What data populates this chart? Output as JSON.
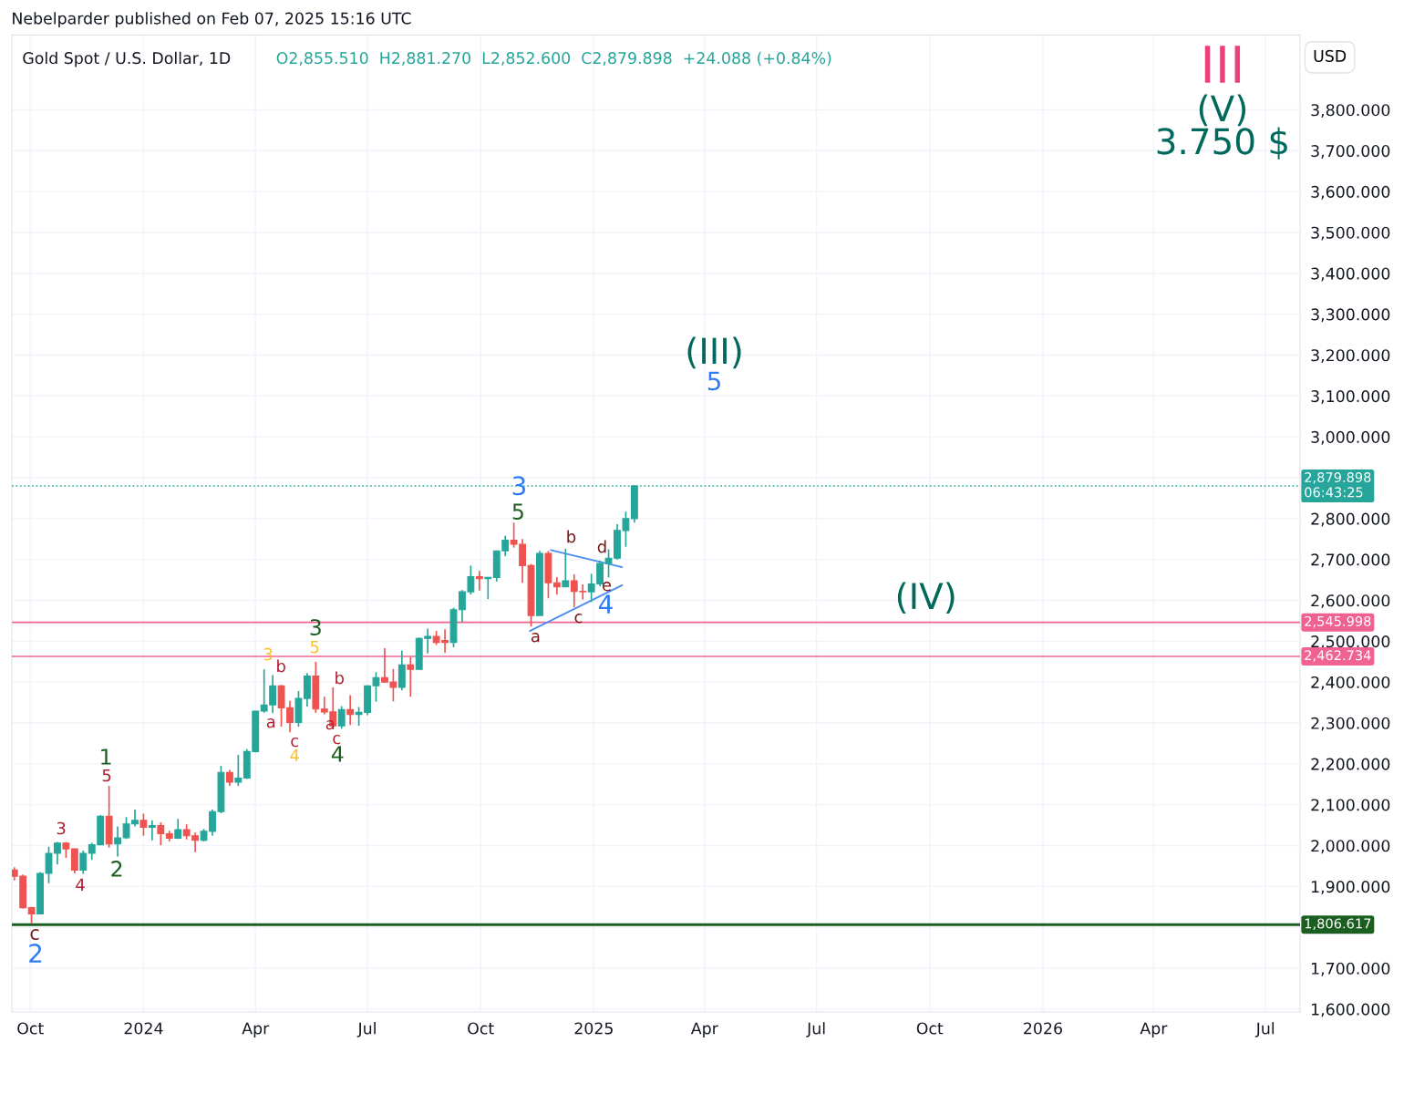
{
  "chart_data": {
    "type": "candlestick",
    "title": "Nebelparder published on Feb 07, 2025 15:16 UTC",
    "subtitle": "Gold Spot / U.S. Dollar, 1D",
    "ylabel": "USD",
    "x": [
      "2023-09-18",
      "2023-09-25",
      "2023-10-02",
      "2023-10-09",
      "2023-10-16",
      "2023-10-23",
      "2023-10-30",
      "2023-11-06",
      "2023-11-13",
      "2023-11-20",
      "2023-11-27",
      "2023-12-04",
      "2023-12-11",
      "2023-12-18",
      "2023-12-25",
      "2024-01-01",
      "2024-01-08",
      "2024-01-15",
      "2024-01-22",
      "2024-01-29",
      "2024-02-05",
      "2024-02-12",
      "2024-02-19",
      "2024-02-26",
      "2024-03-04",
      "2024-03-11",
      "2024-03-18",
      "2024-03-25",
      "2024-04-01",
      "2024-04-08",
      "2024-04-15",
      "2024-04-22",
      "2024-04-29",
      "2024-05-06",
      "2024-05-13",
      "2024-05-20",
      "2024-05-27",
      "2024-06-03",
      "2024-06-10",
      "2024-06-17",
      "2024-06-24",
      "2024-07-01",
      "2024-07-08",
      "2024-07-15",
      "2024-07-22",
      "2024-07-29",
      "2024-08-05",
      "2024-08-12",
      "2024-08-19",
      "2024-08-26",
      "2024-09-02",
      "2024-09-09",
      "2024-09-16",
      "2024-09-23",
      "2024-09-30",
      "2024-10-07",
      "2024-10-14",
      "2024-10-21",
      "2024-10-28",
      "2024-11-04",
      "2024-11-11",
      "2024-11-18",
      "2024-11-25",
      "2024-12-02",
      "2024-12-09",
      "2024-12-16",
      "2024-12-23",
      "2024-12-30",
      "2025-01-06",
      "2025-01-13",
      "2025-01-20",
      "2025-01-27",
      "2025-02-03"
    ],
    "ohlc": [
      [
        1940,
        1947,
        1915,
        1925
      ],
      [
        1925,
        1929,
        1846,
        1848
      ],
      [
        1848,
        1850,
        1810,
        1833
      ],
      [
        1833,
        1935,
        1832,
        1932
      ],
      [
        1932,
        1997,
        1908,
        1981
      ],
      [
        1981,
        2009,
        1954,
        2006
      ],
      [
        2006,
        2009,
        1970,
        1992
      ],
      [
        1992,
        1993,
        1932,
        1940
      ],
      [
        1940,
        1988,
        1931,
        1981
      ],
      [
        1981,
        2007,
        1965,
        2002
      ],
      [
        2002,
        2075,
        2001,
        2072
      ],
      [
        2072,
        2146,
        1995,
        2004
      ],
      [
        2004,
        2047,
        1973,
        2019
      ],
      [
        2019,
        2070,
        2016,
        2053
      ],
      [
        2053,
        2088,
        2047,
        2062
      ],
      [
        2062,
        2078,
        2024,
        2045
      ],
      [
        2045,
        2062,
        2013,
        2049
      ],
      [
        2049,
        2057,
        2001,
        2029
      ],
      [
        2029,
        2036,
        2010,
        2018
      ],
      [
        2018,
        2065,
        2016,
        2039
      ],
      [
        2039,
        2052,
        2015,
        2024
      ],
      [
        2024,
        2032,
        1984,
        2013
      ],
      [
        2013,
        2041,
        2010,
        2035
      ],
      [
        2035,
        2088,
        2024,
        2083
      ],
      [
        2083,
        2195,
        2079,
        2179
      ],
      [
        2179,
        2185,
        2146,
        2155
      ],
      [
        2155,
        2222,
        2146,
        2165
      ],
      [
        2165,
        2236,
        2163,
        2230
      ],
      [
        2230,
        2330,
        2228,
        2329
      ],
      [
        2329,
        2431,
        2325,
        2344
      ],
      [
        2344,
        2417,
        2324,
        2391
      ],
      [
        2391,
        2393,
        2291,
        2337
      ],
      [
        2337,
        2354,
        2277,
        2301
      ],
      [
        2301,
        2378,
        2291,
        2360
      ],
      [
        2360,
        2422,
        2340,
        2415
      ],
      [
        2415,
        2450,
        2325,
        2334
      ],
      [
        2334,
        2364,
        2321,
        2327
      ],
      [
        2327,
        2387,
        2286,
        2293
      ],
      [
        2293,
        2341,
        2286,
        2333
      ],
      [
        2333,
        2368,
        2295,
        2321
      ],
      [
        2321,
        2339,
        2293,
        2326
      ],
      [
        2326,
        2392,
        2319,
        2391
      ],
      [
        2391,
        2424,
        2352,
        2411
      ],
      [
        2411,
        2483,
        2398,
        2400
      ],
      [
        2400,
        2432,
        2353,
        2387
      ],
      [
        2387,
        2477,
        2380,
        2442
      ],
      [
        2442,
        2461,
        2364,
        2431
      ],
      [
        2431,
        2509,
        2430,
        2507
      ],
      [
        2507,
        2531,
        2470,
        2512
      ],
      [
        2512,
        2525,
        2491,
        2497
      ],
      [
        2497,
        2529,
        2471,
        2502
      ],
      [
        2497,
        2582,
        2485,
        2577
      ],
      [
        2577,
        2625,
        2547,
        2621
      ],
      [
        2621,
        2685,
        2614,
        2658
      ],
      [
        2658,
        2672,
        2624,
        2653
      ],
      [
        2653,
        2657,
        2603,
        2656
      ],
      [
        2656,
        2722,
        2646,
        2721
      ],
      [
        2721,
        2758,
        2708,
        2747
      ],
      [
        2747,
        2790,
        2729,
        2737
      ],
      [
        2737,
        2750,
        2643,
        2685
      ],
      [
        2685,
        2689,
        2536,
        2563
      ],
      [
        2563,
        2721,
        2563,
        2715
      ],
      [
        2715,
        2721,
        2605,
        2643
      ],
      [
        2643,
        2657,
        2614,
        2633
      ],
      [
        2633,
        2726,
        2632,
        2648
      ],
      [
        2648,
        2664,
        2583,
        2622
      ],
      [
        2622,
        2639,
        2602,
        2621
      ],
      [
        2621,
        2665,
        2596,
        2640
      ],
      [
        2640,
        2697,
        2634,
        2690
      ],
      [
        2690,
        2725,
        2656,
        2703
      ],
      [
        2703,
        2786,
        2700,
        2771
      ],
      [
        2771,
        2817,
        2731,
        2800
      ],
      [
        2800,
        2882,
        2790,
        2880
      ]
    ],
    "colors": [
      "#ef5350",
      "#ef5350",
      "#ef5350",
      "#26a69a",
      "#26a69a",
      "#26a69a",
      "#ef5350",
      "#ef5350",
      "#26a69a",
      "#26a69a",
      "#26a69a",
      "#ef5350",
      "#26a69a",
      "#26a69a",
      "#26a69a",
      "#ef5350",
      "#26a69a",
      "#ef5350",
      "#ef5350",
      "#26a69a",
      "#ef5350",
      "#ef5350",
      "#26a69a",
      "#26a69a",
      "#26a69a",
      "#ef5350",
      "#26a69a",
      "#26a69a",
      "#26a69a",
      "#26a69a",
      "#26a69a",
      "#ef5350",
      "#ef5350",
      "#26a69a",
      "#26a69a",
      "#ef5350",
      "#ef5350",
      "#ef5350",
      "#26a69a",
      "#ef5350",
      "#26a69a",
      "#26a69a",
      "#26a69a",
      "#ef5350",
      "#ef5350",
      "#26a69a",
      "#ef5350",
      "#26a69a",
      "#26a69a",
      "#ef5350",
      "#ef5350",
      "#26a69a",
      "#26a69a",
      "#26a69a",
      "#ef5350",
      "#26a69a",
      "#26a69a",
      "#26a69a",
      "#ef5350",
      "#ef5350",
      "#ef5350",
      "#26a69a",
      "#ef5350",
      "#ef5350",
      "#26a69a",
      "#ef5350",
      "#ef5350",
      "#26a69a",
      "#26a69a",
      "#26a69a",
      "#26a69a",
      "#26a69a",
      "#26a69a"
    ],
    "series": [
      {
        "type": "line",
        "color": "#4a8ef0",
        "x": [
          "2024-11-27",
          "2025-01-24"
        ],
        "values": [
          2723,
          2681
        ]
      },
      {
        "type": "line",
        "color": "#4a8ef0",
        "x": [
          "2024-11-10",
          "2025-01-24"
        ],
        "values": [
          2525,
          2637
        ]
      }
    ],
    "xlim": [
      "2023-09-16",
      "2026-07-29"
    ],
    "ylim": [
      1593,
      3983
    ],
    "xticks": [
      {
        "value": "2023-10-01",
        "label": "Oct"
      },
      {
        "value": "2024-01-01",
        "label": "2024"
      },
      {
        "value": "2024-04-01",
        "label": "Apr"
      },
      {
        "value": "2024-07-01",
        "label": "Jul"
      },
      {
        "value": "2024-10-01",
        "label": "Oct"
      },
      {
        "value": "2025-01-01",
        "label": "2025"
      },
      {
        "value": "2025-04-01",
        "label": "Apr"
      },
      {
        "value": "2025-07-01",
        "label": "Jul"
      },
      {
        "value": "2025-10-01",
        "label": "Oct"
      },
      {
        "value": "2026-01-01",
        "label": "2026"
      },
      {
        "value": "2026-04-01",
        "label": "Apr"
      },
      {
        "value": "2026-07-01",
        "label": "Jul"
      }
    ],
    "yticks": [
      {
        "value": 1600,
        "label": "1,600.000"
      },
      {
        "value": 1700,
        "label": "1,700.000"
      },
      {
        "value": 1800,
        "label": null
      },
      {
        "value": 1900,
        "label": "1,900.000"
      },
      {
        "value": 2000,
        "label": "2,000.000"
      },
      {
        "value": 2100,
        "label": "2,100.000"
      },
      {
        "value": 2200,
        "label": "2,200.000"
      },
      {
        "value": 2300,
        "label": "2,300.000"
      },
      {
        "value": 2400,
        "label": "2,400.000"
      },
      {
        "value": 2500,
        "label": "2,500.000"
      },
      {
        "value": 2600,
        "label": "2,600.000"
      },
      {
        "value": 2700,
        "label": "2,700.000"
      },
      {
        "value": 2800,
        "label": "2,800.000"
      },
      {
        "value": 2900,
        "label": null
      },
      {
        "value": 3000,
        "label": "3,000.000"
      },
      {
        "value": 3100,
        "label": "3,100.000"
      },
      {
        "value": 3200,
        "label": "3,200.000"
      },
      {
        "value": 3300,
        "label": "3,300.000"
      },
      {
        "value": 3400,
        "label": "3,400.000"
      },
      {
        "value": 3500,
        "label": "3,500.000"
      },
      {
        "value": 3600,
        "label": "3,600.000"
      },
      {
        "value": 3700,
        "label": "3,700.000"
      },
      {
        "value": 3800,
        "label": "3,800.000"
      }
    ],
    "grid": true,
    "ref_lines": [
      {
        "axis": "y",
        "value": 2879.898,
        "label": "2,879.898\n06:43:25",
        "color": "#26a69a",
        "line_style": "dotted"
      },
      {
        "axis": "y",
        "value": 2545.998,
        "label": "2,545.998",
        "color": "#f06292",
        "line_style": "solid"
      },
      {
        "axis": "y",
        "value": 2462.734,
        "label": "2,462.734",
        "color": "#f06292",
        "line_style": "solid"
      },
      {
        "axis": "y",
        "value": 1806.617,
        "label": "1,806.617",
        "color": "#1b5e20",
        "line_style": "solid"
      }
    ],
    "annotations": [
      "O2,855.510  H2,881.270  L2,852.600  C2,879.898  +24.088 (+0.84%)",
      "c",
      "2",
      "3",
      "4",
      "5",
      "1",
      "2",
      "3",
      "b",
      "a",
      "c",
      "4",
      "5",
      "3",
      "b",
      "a",
      "c",
      "4",
      "3",
      "5",
      "b",
      "d",
      "e",
      "4",
      "c",
      "a",
      "(III)",
      "5",
      "(IV)",
      "III",
      "(V)",
      "3.750 $"
    ]
  }
}
